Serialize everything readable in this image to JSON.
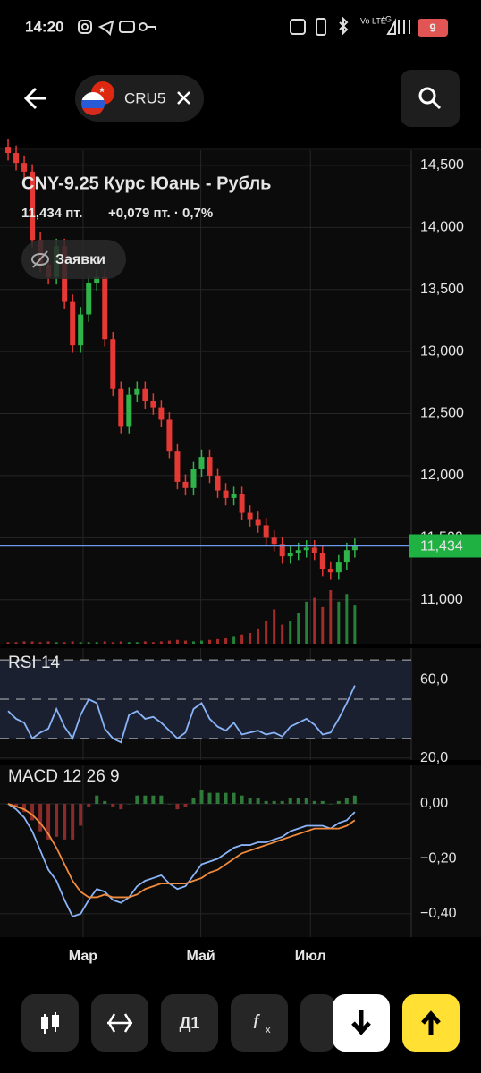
{
  "status_bar": {
    "time": "14:20",
    "network": "4G",
    "volte": "Vo LTE",
    "battery": "9"
  },
  "header": {
    "ticker": "CRU5"
  },
  "chart_data": [
    {
      "type": "candlestick",
      "title": "CNY-9.25 Курс Юань - Рубль",
      "price_label": "11,434 пт.",
      "change_label": "+0,079 пт. · 0,7%",
      "orders_button": "Заявки",
      "xlim": [
        -1,
        50
      ],
      "ylim": [
        10645,
        14622
      ],
      "yticks": [
        {
          "value": 11000,
          "label": "11,000"
        },
        {
          "value": 11500,
          "label": "11,500"
        },
        {
          "value": 12000,
          "label": "12,000"
        },
        {
          "value": 12500,
          "label": "12,500"
        },
        {
          "value": 13000,
          "label": "13,000"
        },
        {
          "value": 13500,
          "label": "13,500"
        },
        {
          "value": 14000,
          "label": "14,000"
        },
        {
          "value": 14500,
          "label": "14,500"
        }
      ],
      "up_color": "#2fb34a",
      "down_color": "#e53935",
      "last_color": "#1fb141",
      "line_color": "#6b9be8",
      "open": [
        14650,
        14600,
        14520,
        14450,
        13900,
        13700,
        13600,
        13850,
        13400,
        13050,
        13300,
        13550,
        13600,
        13100,
        12700,
        12400,
        12650,
        12700,
        12600,
        12550,
        12450,
        12200,
        11950,
        11900,
        12050,
        12150,
        12000,
        11880,
        11820,
        11850,
        11700,
        11650,
        11600,
        11500,
        11450,
        11350,
        11380,
        11400,
        11420,
        11380,
        11250,
        11220,
        11300,
        11400
      ],
      "high": [
        14710,
        14660,
        14580,
        14510,
        13960,
        13760,
        13910,
        13910,
        13460,
        13360,
        13610,
        13660,
        13660,
        13160,
        12760,
        12710,
        12760,
        12760,
        12660,
        12610,
        12510,
        12260,
        12010,
        12110,
        12210,
        12210,
        12060,
        11940,
        11910,
        11910,
        11760,
        11710,
        11660,
        11560,
        11510,
        11440,
        11460,
        11480,
        11480,
        11440,
        11310,
        11360,
        11460,
        11494
      ],
      "low": [
        14540,
        14460,
        14390,
        13840,
        13640,
        13540,
        13540,
        13340,
        12990,
        12990,
        13240,
        13490,
        13040,
        12640,
        12340,
        12340,
        12590,
        12540,
        12490,
        12390,
        12140,
        11890,
        11840,
        11840,
        11990,
        11940,
        11820,
        11760,
        11760,
        11640,
        11590,
        11540,
        11440,
        11390,
        11290,
        11290,
        11320,
        11340,
        11320,
        11190,
        11160,
        11160,
        11240,
        11340
      ],
      "close": [
        14600,
        14520,
        14450,
        13900,
        13700,
        13600,
        13850,
        13400,
        13050,
        13300,
        13550,
        13600,
        13100,
        12700,
        12400,
        12650,
        12700,
        12600,
        12550,
        12450,
        12200,
        11950,
        11900,
        12050,
        12150,
        12000,
        11880,
        11820,
        11850,
        11700,
        11650,
        11600,
        11500,
        11450,
        11350,
        11380,
        11400,
        11420,
        11380,
        11250,
        11220,
        11300,
        11400,
        11434
      ],
      "volume": [
        2,
        2,
        3,
        3,
        2,
        3,
        2,
        2,
        3,
        2,
        2,
        2,
        3,
        2,
        3,
        2,
        2,
        3,
        2,
        3,
        4,
        5,
        4,
        3,
        4,
        5,
        6,
        8,
        10,
        12,
        14,
        20,
        30,
        45,
        25,
        30,
        40,
        55,
        60,
        48,
        70,
        55,
        65,
        50
      ],
      "last": {
        "value": 11434,
        "label": "11,434"
      }
    },
    {
      "type": "line",
      "title": "RSI 14",
      "xlim": [
        -1,
        50
      ],
      "ylim": [
        19,
        76
      ],
      "yticks": [
        {
          "value": 20,
          "label": "20,0"
        },
        {
          "value": 60,
          "label": "60,0"
        }
      ],
      "levels": [
        30,
        50,
        70
      ],
      "color": "#8ab4f8",
      "values": [
        44,
        40,
        38,
        30,
        33,
        35,
        45,
        36,
        30,
        42,
        50,
        48,
        35,
        30,
        28,
        42,
        44,
        40,
        41,
        38,
        34,
        30,
        33,
        45,
        48,
        40,
        36,
        34,
        38,
        32,
        33,
        34,
        32,
        33,
        31,
        36,
        38,
        40,
        37,
        32,
        33,
        40,
        48,
        57
      ]
    },
    {
      "type": "macd",
      "title": "MACD 12 26 9",
      "xlim": [
        -1,
        50
      ],
      "ylim": [
        -0.485,
        0.143
      ],
      "yticks": [
        {
          "value": -0.4,
          "label": "−0,40"
        },
        {
          "value": -0.2,
          "label": "−0,20"
        },
        {
          "value": 0,
          "label": "0,00"
        }
      ],
      "xticks": [
        {
          "value": 9.3,
          "label": "Мар"
        },
        {
          "value": 23.9,
          "label": "Май"
        },
        {
          "value": 37.5,
          "label": "Июл"
        }
      ],
      "series": [
        {
          "color": "#8ab4f8",
          "values": [
            0,
            -0.02,
            -0.05,
            -0.1,
            -0.17,
            -0.24,
            -0.28,
            -0.35,
            -0.41,
            -0.4,
            -0.35,
            -0.31,
            -0.32,
            -0.35,
            -0.36,
            -0.34,
            -0.3,
            -0.28,
            -0.27,
            -0.26,
            -0.29,
            -0.31,
            -0.3,
            -0.26,
            -0.22,
            -0.21,
            -0.2,
            -0.18,
            -0.16,
            -0.15,
            -0.15,
            -0.14,
            -0.14,
            -0.13,
            -0.12,
            -0.1,
            -0.09,
            -0.08,
            -0.08,
            -0.08,
            -0.09,
            -0.07,
            -0.06,
            -0.03
          ]
        },
        {
          "color": "#f08a3c",
          "values": [
            0,
            -0.01,
            -0.02,
            -0.04,
            -0.07,
            -0.11,
            -0.16,
            -0.22,
            -0.28,
            -0.32,
            -0.34,
            -0.34,
            -0.33,
            -0.34,
            -0.34,
            -0.34,
            -0.33,
            -0.31,
            -0.3,
            -0.29,
            -0.29,
            -0.29,
            -0.29,
            -0.28,
            -0.27,
            -0.25,
            -0.24,
            -0.22,
            -0.2,
            -0.18,
            -0.17,
            -0.16,
            -0.15,
            -0.14,
            -0.13,
            -0.12,
            -0.11,
            -0.1,
            -0.09,
            -0.09,
            -0.09,
            -0.09,
            -0.08,
            -0.06
          ]
        }
      ],
      "histogram": [
        0,
        -0.01,
        -0.03,
        -0.06,
        -0.1,
        -0.13,
        -0.12,
        -0.13,
        -0.13,
        -0.08,
        -0.01,
        0.03,
        0.01,
        -0.01,
        -0.02,
        0,
        0.03,
        0.03,
        0.03,
        0.03,
        0,
        -0.02,
        -0.01,
        0.02,
        0.05,
        0.04,
        0.04,
        0.04,
        0.04,
        0.03,
        0.02,
        0.02,
        0.01,
        0.01,
        0.01,
        0.02,
        0.02,
        0.02,
        0.01,
        0.01,
        0,
        0.01,
        0.02,
        0.03
      ],
      "hist_up_color": "#2f7a3a",
      "hist_down_color": "#8a2a2a"
    }
  ],
  "toolbar": {
    "period": "Д1"
  }
}
